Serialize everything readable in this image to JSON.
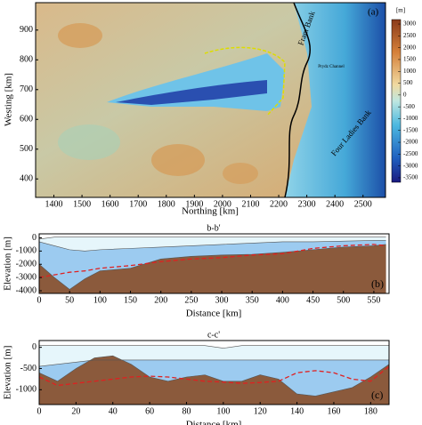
{
  "chart_data": [
    {
      "type": "map",
      "label": "(a)",
      "x_label": "Northing [km]",
      "y_label": "Westing [km]",
      "xlim": [
        1335,
        2580
      ],
      "xticks": [
        1400,
        1500,
        1600,
        1700,
        1800,
        1900,
        2000,
        2100,
        2200,
        2300,
        2400,
        2500
      ],
      "ylim": [
        338,
        992
      ],
      "yticks": [
        400,
        500,
        600,
        700,
        800,
        900
      ],
      "annotations": [
        "Fram Bank",
        "Four Ladies Bank",
        "Prydz Channel"
      ],
      "colorbar": {
        "label": "[m]",
        "lim": [
          -3690,
          3190
        ],
        "ticks": [
          3000,
          2500,
          2000,
          1500,
          1000,
          500,
          0,
          -500,
          -1000,
          -1500,
          -2000,
          -2500,
          -3000,
          -3500
        ]
      }
    },
    {
      "type": "profile",
      "title": "b-b'",
      "label": "(b)",
      "x_label": "Distance [km]",
      "y_label": "Elevation [m]",
      "xlim": [
        0,
        575
      ],
      "xticks": [
        0,
        50,
        100,
        150,
        200,
        250,
        300,
        350,
        400,
        450,
        500,
        550
      ],
      "ylim": [
        -4200,
        300
      ],
      "yticks": [
        0,
        -1000,
        -2000,
        -3000,
        -4000
      ],
      "x": [
        0,
        25,
        50,
        75,
        100,
        150,
        200,
        250,
        300,
        350,
        400,
        450,
        500,
        550,
        570
      ],
      "series": [
        {
          "color": "#e6f6fb",
          "values": [
            -100,
            50,
            50,
            50,
            50,
            50,
            50,
            50,
            50,
            50,
            50,
            50,
            50,
            50,
            50
          ]
        },
        {
          "color": "#9ccbf0",
          "values": [
            -300,
            -600,
            -900,
            -1000,
            -900,
            -800,
            -700,
            -600,
            -500,
            -400,
            -300,
            -300,
            -250,
            -200,
            -200
          ]
        },
        {
          "color": "#8b5a3c",
          "values": [
            -2000,
            -3000,
            -3900,
            -3100,
            -2500,
            -2300,
            -1600,
            -1400,
            -1300,
            -1250,
            -1100,
            -900,
            -700,
            -600,
            -500
          ]
        },
        {
          "color": "#e02020",
          "dashed": true,
          "values": [
            -3000,
            -2800,
            -2600,
            -2500,
            -2300,
            -2100,
            -1800,
            -1600,
            -1500,
            -1300,
            -1200,
            -800,
            -600,
            -500,
            -600
          ]
        }
      ]
    },
    {
      "type": "profile",
      "title": "c-c'",
      "label": "(c)",
      "x_label": "Distance [km]",
      "y_label": "Elevation [m]",
      "xlim": [
        0,
        190
      ],
      "xticks": [
        0,
        20,
        40,
        60,
        80,
        100,
        120,
        140,
        160,
        180
      ],
      "ylim": [
        -1350,
        160
      ],
      "yticks": [
        0,
        -500,
        -1000
      ],
      "x": [
        0,
        10,
        20,
        30,
        40,
        50,
        60,
        70,
        80,
        90,
        100,
        110,
        120,
        130,
        140,
        150,
        160,
        170,
        180,
        190
      ],
      "series": [
        {
          "color": "#e6f6fb",
          "values": [
            40,
            40,
            40,
            40,
            40,
            40,
            40,
            40,
            40,
            40,
            -20,
            40,
            40,
            40,
            40,
            40,
            40,
            40,
            40,
            40
          ]
        },
        {
          "color": "#9ccbf0",
          "values": [
            -450,
            -400,
            -350,
            -300,
            -300,
            -300,
            -300,
            -300,
            -300,
            -300,
            -300,
            -300,
            -300,
            -300,
            -300,
            -300,
            -300,
            -300,
            -300,
            -300
          ]
        },
        {
          "color": "#8b5a3c",
          "values": [
            -600,
            -800,
            -500,
            -250,
            -200,
            -400,
            -700,
            -800,
            -700,
            -650,
            -800,
            -800,
            -650,
            -750,
            -1100,
            -1150,
            -1050,
            -950,
            -700,
            -400
          ]
        },
        {
          "color": "#e02020",
          "dashed": true,
          "values": [
            -700,
            -900,
            -850,
            -800,
            -750,
            -700,
            -680,
            -700,
            -750,
            -800,
            -820,
            -850,
            -830,
            -800,
            -600,
            -550,
            -600,
            -750,
            -800,
            -450
          ]
        }
      ]
    }
  ]
}
